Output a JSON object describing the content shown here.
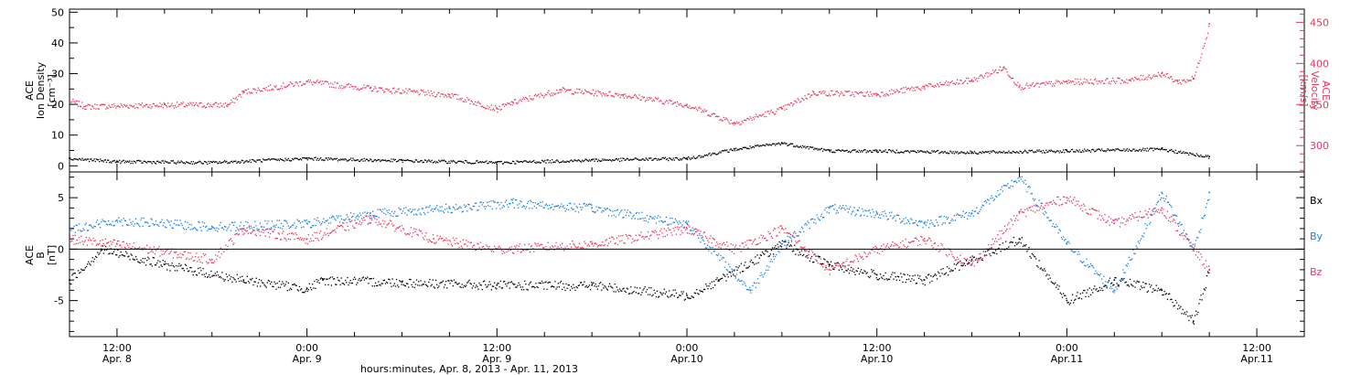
{
  "colors": {
    "density": "#000000",
    "velocity": "#e8375f",
    "bx": "#000000",
    "by": "#1a7fe0",
    "bz": "#e8375f"
  },
  "x_axis": {
    "title": "hours:minutes, Apr.  8, 2013 - Apr. 11, 2013",
    "range": [
      "2013-04-08T09:00",
      "2013-04-11T15:00"
    ],
    "ticks": [
      {
        "t": "2013-04-08T12:00",
        "top": "12:00",
        "bottom": "Apr. 8"
      },
      {
        "t": "2013-04-09T00:00",
        "top": "0:00",
        "bottom": "Apr. 9"
      },
      {
        "t": "2013-04-09T12:00",
        "top": "12:00",
        "bottom": "Apr. 9"
      },
      {
        "t": "2013-04-10T00:00",
        "top": "0:00",
        "bottom": "Apr.10"
      },
      {
        "t": "2013-04-10T12:00",
        "top": "12:00",
        "bottom": "Apr.10"
      },
      {
        "t": "2013-04-11T00:00",
        "top": "0:00",
        "bottom": "Apr.11"
      },
      {
        "t": "2013-04-11T12:00",
        "top": "12:00",
        "bottom": "Apr.11"
      }
    ]
  },
  "chart_data": [
    {
      "type": "scatter",
      "panel": "top",
      "ylabel_left": [
        "ACE",
        "Ion Density",
        "[cm⁻³]"
      ],
      "ylabel_right": [
        "ACE",
        "Velocity",
        "[km/s]"
      ],
      "ylim_left": [
        -2,
        51
      ],
      "yticks_left": [
        0,
        10,
        20,
        30,
        40,
        50
      ],
      "ylim_right": [
        268,
        466
      ],
      "yticks_right": [
        300,
        350,
        400,
        450
      ],
      "series": [
        {
          "axis": "left",
          "color": "#000000",
          "x": [
            "2013-04-08T09:00",
            "2013-04-08T12:00",
            "2013-04-08T18:00",
            "2013-04-09T00:00",
            "2013-04-09T06:00",
            "2013-04-09T12:00",
            "2013-04-09T18:00",
            "2013-04-10T00:00",
            "2013-04-10T03:00",
            "2013-04-10T06:00",
            "2013-04-10T09:00",
            "2013-04-10T12:00",
            "2013-04-10T18:00",
            "2013-04-11T00:00",
            "2013-04-11T06:00",
            "2013-04-11T09:00"
          ],
          "y": [
            2.5,
            1.5,
            1.2,
            2.5,
            1.8,
            1.2,
            2.0,
            2.5,
            5.5,
            7.5,
            5.0,
            5.0,
            4.5,
            5.0,
            5.5,
            3.0
          ]
        },
        {
          "axis": "right",
          "color": "#e8375f",
          "x": [
            "2013-04-08T09:00",
            "2013-04-08T10:00",
            "2013-04-08T15:00",
            "2013-04-08T19:00",
            "2013-04-08T20:00",
            "2013-04-09T00:00",
            "2013-04-09T04:00",
            "2013-04-09T09:00",
            "2013-04-09T12:00",
            "2013-04-09T13:00",
            "2013-04-09T16:00",
            "2013-04-09T20:00",
            "2013-04-10T00:00",
            "2013-04-10T03:00",
            "2013-04-10T06:00",
            "2013-04-10T08:00",
            "2013-04-10T12:00",
            "2013-04-10T15:00",
            "2013-04-10T18:00",
            "2013-04-10T20:00",
            "2013-04-10T21:00",
            "2013-04-11T00:00",
            "2013-04-11T04:00",
            "2013-04-11T06:00",
            "2013-04-11T07:00",
            "2013-04-11T08:00",
            "2013-04-11T09:00"
          ],
          "y": [
            355,
            348,
            350,
            350,
            366,
            378,
            370,
            362,
            345,
            353,
            368,
            362,
            350,
            328,
            345,
            365,
            363,
            372,
            380,
            395,
            372,
            378,
            380,
            388,
            378,
            382,
            448
          ]
        }
      ]
    },
    {
      "type": "scatter",
      "panel": "bottom",
      "ylabel_left": [
        "ACE",
        "B",
        "[nT]"
      ],
      "ylim": [
        -8.5,
        7.5
      ],
      "yticks": [
        -5,
        0,
        5
      ],
      "zero_line": true,
      "series": [
        {
          "name": "Bx",
          "color": "#000000",
          "x": [
            "2013-04-08T09:00",
            "2013-04-08T11:00",
            "2013-04-08T15:00",
            "2013-04-08T20:00",
            "2013-04-09T00:00",
            "2013-04-09T01:00",
            "2013-04-09T06:00",
            "2013-04-09T12:00",
            "2013-04-09T18:00",
            "2013-04-10T00:00",
            "2013-04-10T02:00",
            "2013-04-10T06:00",
            "2013-04-10T09:00",
            "2013-04-10T12:00",
            "2013-04-10T15:00",
            "2013-04-10T18:00",
            "2013-04-10T21:00",
            "2013-04-11T00:00",
            "2013-04-11T03:00",
            "2013-04-11T06:00",
            "2013-04-11T08:00",
            "2013-04-11T09:00"
          ],
          "y": [
            -3.0,
            0.0,
            -1.5,
            -3.0,
            -3.8,
            -3.0,
            -3.2,
            -3.5,
            -3.5,
            -4.5,
            -3.0,
            0.5,
            -1.5,
            -2.5,
            -3.0,
            -1.0,
            1.0,
            -5.0,
            -3.0,
            -4.0,
            -7.0,
            -2.0
          ]
        },
        {
          "name": "By",
          "color": "#1a7fe0",
          "x": [
            "2013-04-08T09:00",
            "2013-04-08T12:00",
            "2013-04-08T18:00",
            "2013-04-09T00:00",
            "2013-04-09T04:00",
            "2013-04-09T09:00",
            "2013-04-09T13:00",
            "2013-04-09T18:00",
            "2013-04-10T00:00",
            "2013-04-10T04:00",
            "2013-04-10T06:00",
            "2013-04-10T09:00",
            "2013-04-10T12:00",
            "2013-04-10T15:00",
            "2013-04-10T18:00",
            "2013-04-10T21:00",
            "2013-04-11T00:00",
            "2013-04-11T03:00",
            "2013-04-11T06:00",
            "2013-04-11T08:00",
            "2013-04-11T09:00"
          ],
          "y": [
            2.0,
            2.8,
            2.2,
            2.5,
            3.5,
            4.0,
            4.5,
            4.0,
            2.5,
            -4.0,
            0.5,
            4.0,
            3.5,
            2.5,
            3.5,
            7.0,
            0.5,
            -4.0,
            5.5,
            0.0,
            5.5
          ]
        },
        {
          "name": "Bz",
          "color": "#e8375f",
          "x": [
            "2013-04-08T09:00",
            "2013-04-08T12:00",
            "2013-04-08T18:00",
            "2013-04-08T20:00",
            "2013-04-09T00:00",
            "2013-04-09T04:00",
            "2013-04-09T08:00",
            "2013-04-09T12:00",
            "2013-04-09T18:00",
            "2013-04-10T00:00",
            "2013-04-10T03:00",
            "2013-04-10T06:00",
            "2013-04-10T09:00",
            "2013-04-10T12:00",
            "2013-04-10T15:00",
            "2013-04-10T18:00",
            "2013-04-10T21:00",
            "2013-04-11T00:00",
            "2013-04-11T03:00",
            "2013-04-11T06:00",
            "2013-04-11T09:00"
          ],
          "y": [
            1.0,
            0.5,
            -1.0,
            2.0,
            1.0,
            3.0,
            1.0,
            0.0,
            0.5,
            2.0,
            0.0,
            2.0,
            -2.0,
            0.0,
            1.0,
            -1.5,
            3.5,
            5.0,
            2.5,
            4.0,
            -2.0
          ]
        }
      ]
    }
  ]
}
